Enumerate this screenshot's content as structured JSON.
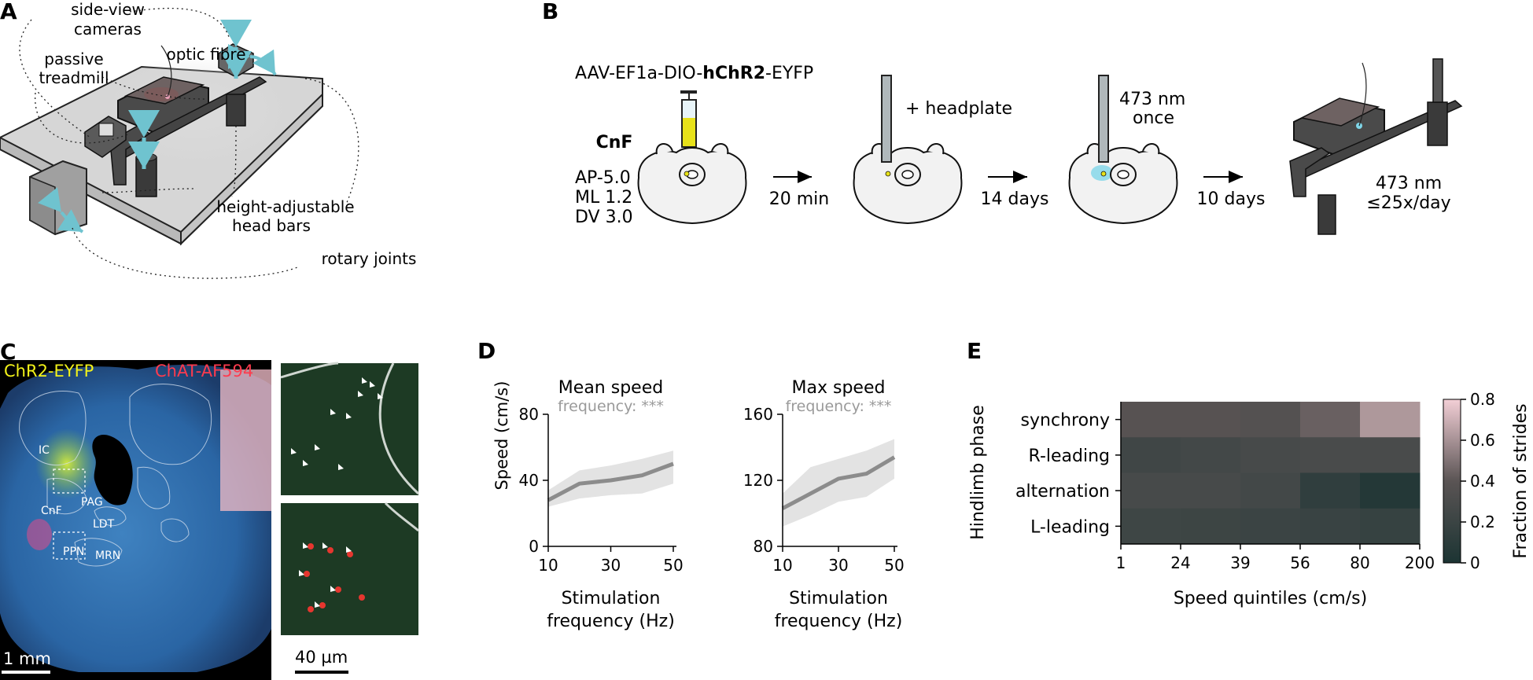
{
  "panels": {
    "a": "A",
    "b": "B",
    "c": "C",
    "d": "D",
    "e": "E"
  },
  "panel_a": {
    "cameras_l1": "side-view",
    "cameras_l2": "cameras",
    "treadmill_l1": "passive",
    "treadmill_l2": "treadmill",
    "fibre": "optic fibre",
    "headbars_l1": "height-adjustable",
    "headbars_l2": "head bars",
    "joints": "rotary joints"
  },
  "panel_b": {
    "construct_pre": "AAV-EF1a-DIO-",
    "construct_bold": "hChR2",
    "construct_post": "-EYFP",
    "region": "CnF",
    "coords": [
      "AP-5.0",
      "ML 1.2",
      "DV 3.0"
    ],
    "headplate": "+ headplate",
    "light1_l1": "473 nm",
    "light1_l2": "once",
    "interval1": "20 min",
    "interval2": "14 days",
    "interval3": "10 days",
    "light2_l1": "473 nm",
    "light2_l2": "≤25x/day",
    "colors": {
      "virus": "#e8e21a",
      "light": "#7fd6e8",
      "brain": "#f2f2f2"
    }
  },
  "panel_c": {
    "ch1": "ChR2-EYFP",
    "ch2": "ChAT-AF594",
    "regions": [
      "IC",
      "PAG",
      "CnF",
      "LDT",
      "PPN",
      "MRN"
    ],
    "scale1": "1 mm",
    "scale2": "40 µm",
    "colors": {
      "ch1": "#f2f21a",
      "ch2": "#ff3b4e"
    }
  },
  "chart_data": [
    {
      "type": "line",
      "title": "Mean speed",
      "subtitle": "frequency: ***",
      "xlabel": "Stimulation frequency (Hz)",
      "xlabel_l1": "Stimulation",
      "xlabel_l2": "frequency (Hz)",
      "ylabel": "Speed (cm/s)",
      "x": [
        10,
        20,
        30,
        40,
        50
      ],
      "y": [
        28,
        38,
        40,
        43,
        50
      ],
      "ci_low": [
        24,
        29,
        31,
        32,
        38
      ],
      "ci_high": [
        34,
        46,
        49,
        53,
        58
      ],
      "xlim": [
        10,
        50
      ],
      "ylim": [
        0,
        80
      ],
      "xticks": [
        10,
        30,
        50
      ],
      "yticks": [
        0,
        40,
        80
      ],
      "color": "#8c8c8c",
      "band_color": "#e3e3e3"
    },
    {
      "type": "line",
      "title": "Max speed",
      "subtitle": "frequency: ***",
      "xlabel": "Stimulation frequency (Hz)",
      "xlabel_l1": "Stimulation",
      "xlabel_l2": "frequency (Hz)",
      "ylabel": "",
      "x": [
        10,
        20,
        30,
        40,
        50
      ],
      "y": [
        103,
        112,
        121,
        124,
        134
      ],
      "ci_low": [
        92,
        99,
        107,
        110,
        121
      ],
      "ci_high": [
        112,
        128,
        133,
        138,
        145
      ],
      "xlim": [
        10,
        50
      ],
      "ylim": [
        80,
        160
      ],
      "xticks": [
        10,
        30,
        50
      ],
      "yticks": [
        80,
        120,
        160
      ],
      "color": "#8c8c8c",
      "band_color": "#e3e3e3"
    },
    {
      "type": "heatmap",
      "xlabel": "Speed quintiles (cm/s)",
      "ylabel": "Hindlimb phase",
      "x_edges": [
        "1",
        "24",
        "39",
        "56",
        "80",
        "200"
      ],
      "rows": [
        "synchrony",
        "R-leading",
        "alternation",
        "L-leading"
      ],
      "values": [
        [
          0.38,
          0.38,
          0.36,
          0.44,
          0.62
        ],
        [
          0.23,
          0.25,
          0.28,
          0.29,
          0.29
        ],
        [
          0.28,
          0.28,
          0.25,
          0.13,
          0.05
        ],
        [
          0.22,
          0.21,
          0.2,
          0.19,
          0.17
        ]
      ],
      "colorbar_label": "Fraction of strides",
      "colorbar_ticks": [
        "0",
        "0.2",
        "0.4",
        "0.6",
        "0.8"
      ],
      "vmin": 0,
      "vmax": 0.8,
      "colormap": [
        "#1c3433",
        "#5a5454",
        "#f3cfd6"
      ]
    }
  ]
}
